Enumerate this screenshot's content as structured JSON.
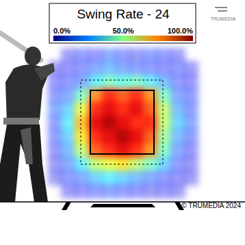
{
  "chart_data": {
    "type": "heatmap",
    "title": "Swing Rate - 24",
    "annotations": [
      "TRUMEDIA",
      "© TRUMEDIA 2024"
    ],
    "tick_labels": false,
    "cells": [
      [
        null,
        10,
        15,
        12,
        20,
        15,
        10,
        18,
        15,
        10,
        null
      ],
      [
        10,
        12,
        15,
        20,
        25,
        20,
        18,
        15,
        12,
        15,
        10
      ],
      [
        12,
        15,
        20,
        35,
        45,
        40,
        45,
        35,
        25,
        15,
        12
      ],
      [
        15,
        20,
        45,
        75,
        85,
        80,
        85,
        75,
        45,
        20,
        15
      ],
      [
        20,
        30,
        60,
        85,
        90,
        85,
        90,
        80,
        55,
        25,
        15
      ],
      [
        15,
        35,
        70,
        90,
        95,
        90,
        85,
        85,
        55,
        30,
        20
      ],
      [
        15,
        30,
        65,
        85,
        90,
        95,
        90,
        80,
        50,
        25,
        15
      ],
      [
        12,
        25,
        55,
        80,
        85,
        90,
        85,
        75,
        45,
        20,
        12
      ],
      [
        10,
        20,
        35,
        55,
        60,
        65,
        55,
        45,
        30,
        15,
        10
      ],
      [
        10,
        15,
        20,
        30,
        35,
        30,
        25,
        20,
        15,
        12,
        10
      ],
      [
        null,
        10,
        12,
        15,
        18,
        15,
        12,
        10,
        12,
        10,
        null
      ]
    ],
    "colorbar": {
      "range": [
        0,
        100
      ],
      "ticks": [
        {
          "value": 0,
          "label": "0.0%"
        },
        {
          "value": 50,
          "label": "50.0%"
        },
        {
          "value": 100,
          "label": "100.0%"
        }
      ]
    }
  }
}
